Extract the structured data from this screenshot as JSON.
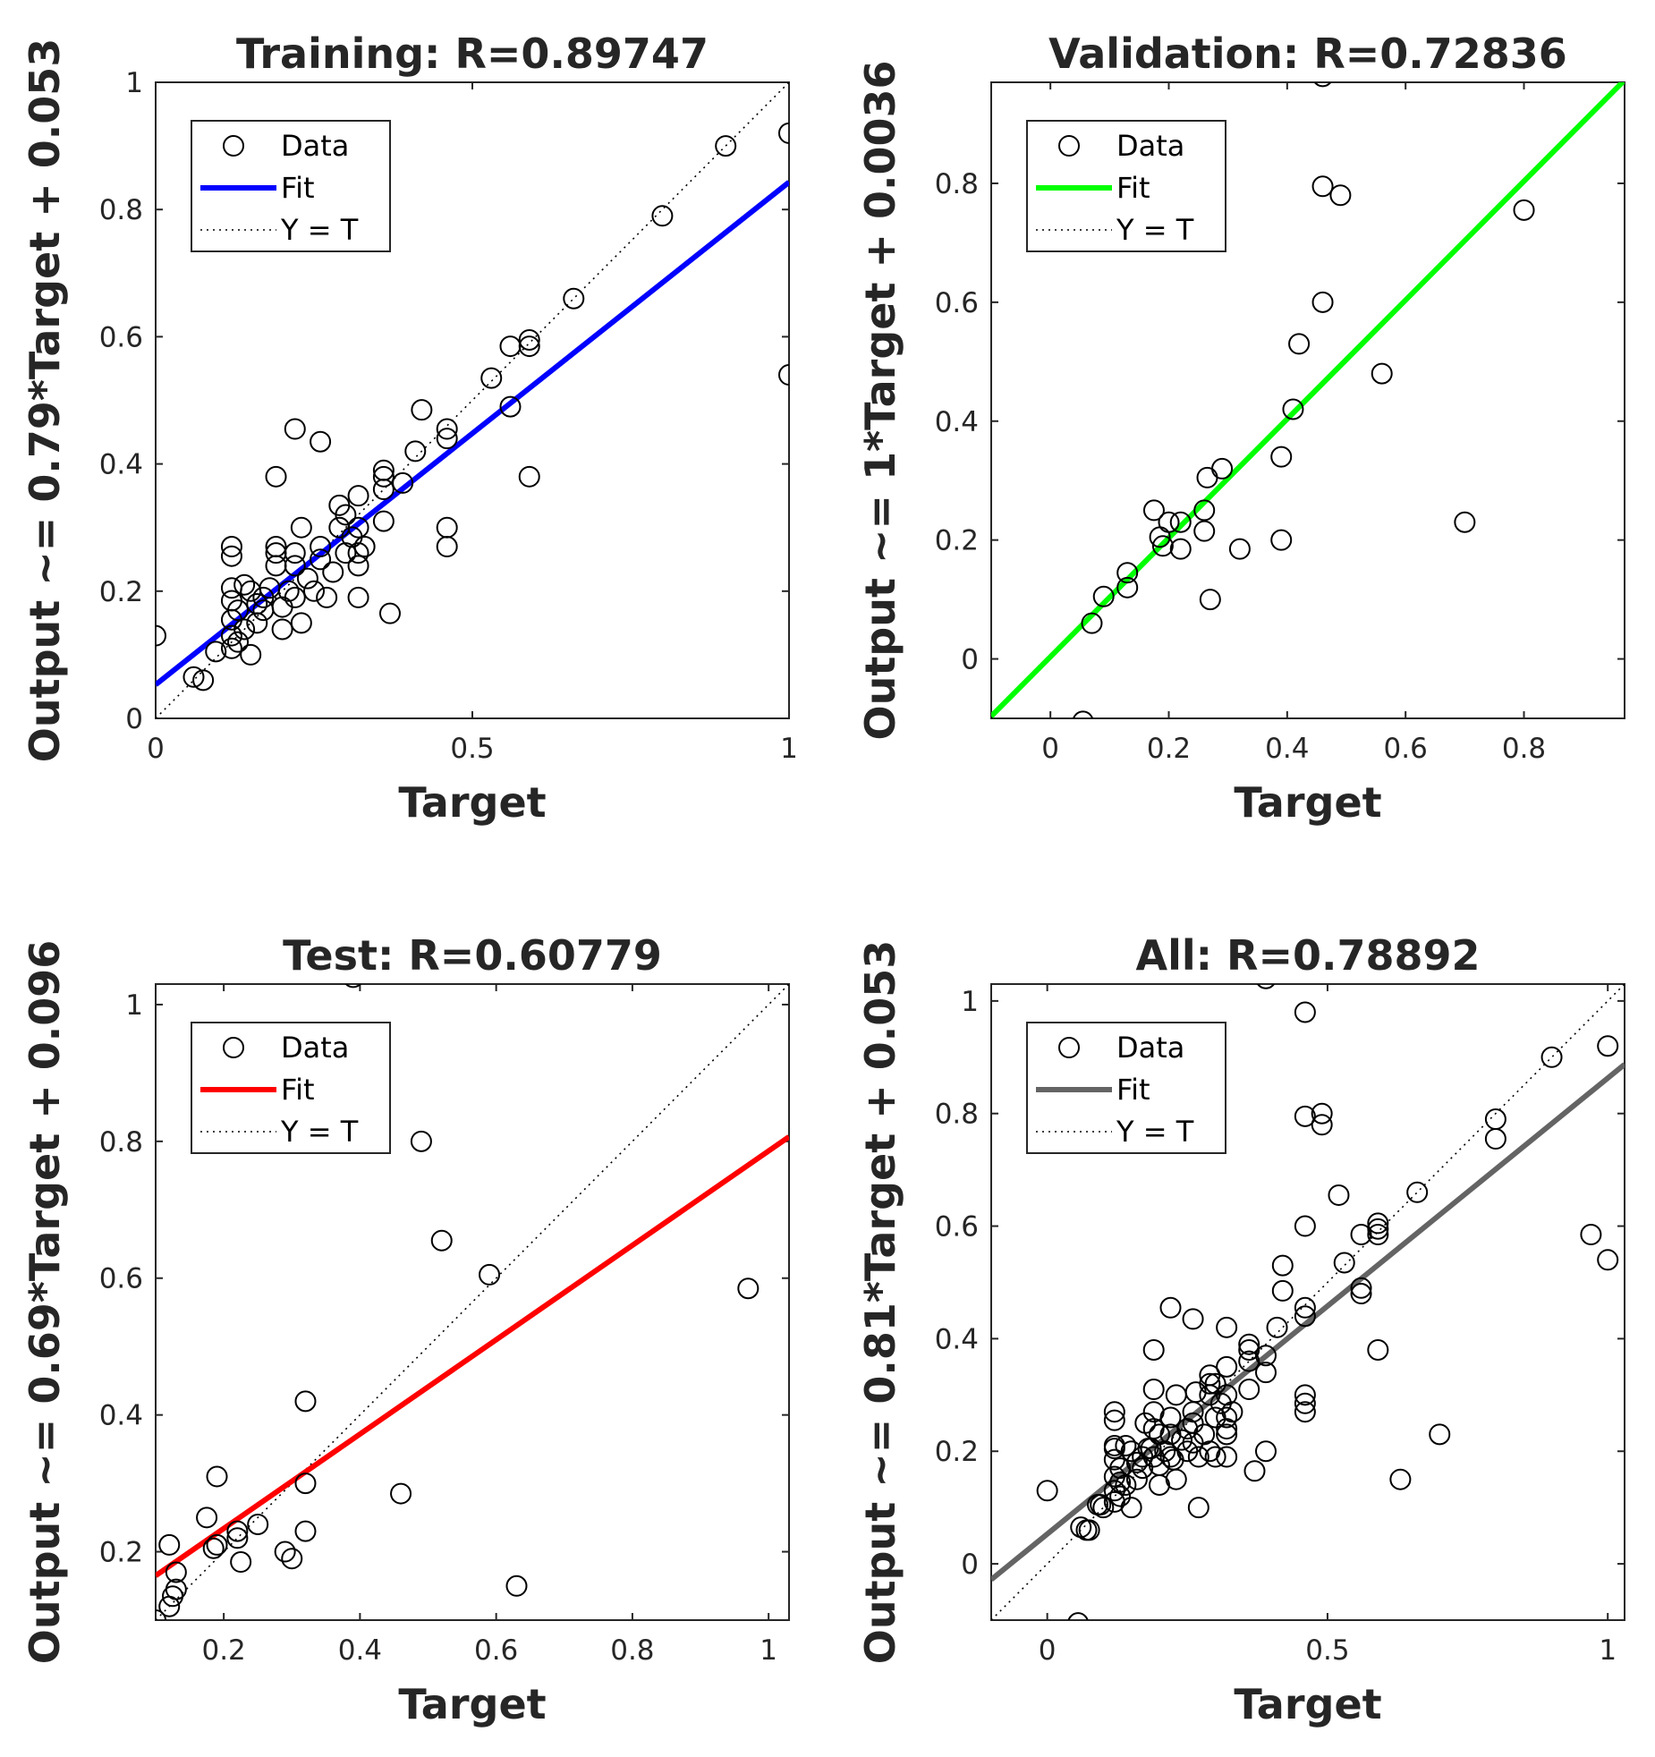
{
  "chart_data": [
    {
      "type": "scatter",
      "title": "Training: R=0.89747",
      "xlabel": "Target",
      "ylabel": "Output ~= 0.79*Target + 0.053",
      "xlim": [
        0,
        1
      ],
      "ylim": [
        0,
        1
      ],
      "xticks": [
        0,
        0.5,
        1
      ],
      "xtick_labels": [
        "0",
        "0.5",
        "1"
      ],
      "yticks": [
        0,
        0.2,
        0.4,
        0.6,
        0.8,
        1
      ],
      "ytick_labels": [
        "0",
        "0.2",
        "0.4",
        "0.6",
        "0.8",
        "1"
      ],
      "fit": {
        "slope": 0.79,
        "intercept": 0.053,
        "color": "#0000ff"
      },
      "legend": {
        "data": "Data",
        "fit": "Fit",
        "identity": "Y = T",
        "position": "top-left"
      },
      "points": [
        [
          0,
          0.13
        ],
        [
          0.06,
          0.065
        ],
        [
          0.075,
          0.06
        ],
        [
          0.095,
          0.105
        ],
        [
          0.12,
          0.11
        ],
        [
          0.12,
          0.13
        ],
        [
          0.12,
          0.155
        ],
        [
          0.12,
          0.185
        ],
        [
          0.12,
          0.205
        ],
        [
          0.12,
          0.255
        ],
        [
          0.12,
          0.27
        ],
        [
          0.13,
          0.12
        ],
        [
          0.13,
          0.17
        ],
        [
          0.14,
          0.14
        ],
        [
          0.14,
          0.21
        ],
        [
          0.15,
          0.1
        ],
        [
          0.15,
          0.2
        ],
        [
          0.16,
          0.15
        ],
        [
          0.16,
          0.18
        ],
        [
          0.17,
          0.17
        ],
        [
          0.17,
          0.19
        ],
        [
          0.18,
          0.205
        ],
        [
          0.19,
          0.24
        ],
        [
          0.19,
          0.26
        ],
        [
          0.19,
          0.27
        ],
        [
          0.19,
          0.38
        ],
        [
          0.2,
          0.14
        ],
        [
          0.2,
          0.175
        ],
        [
          0.21,
          0.2
        ],
        [
          0.22,
          0.19
        ],
        [
          0.22,
          0.24
        ],
        [
          0.22,
          0.26
        ],
        [
          0.22,
          0.455
        ],
        [
          0.23,
          0.15
        ],
        [
          0.23,
          0.3
        ],
        [
          0.24,
          0.22
        ],
        [
          0.25,
          0.2
        ],
        [
          0.26,
          0.25
        ],
        [
          0.26,
          0.27
        ],
        [
          0.26,
          0.435
        ],
        [
          0.27,
          0.19
        ],
        [
          0.28,
          0.23
        ],
        [
          0.29,
          0.3
        ],
        [
          0.29,
          0.335
        ],
        [
          0.3,
          0.26
        ],
        [
          0.3,
          0.32
        ],
        [
          0.31,
          0.285
        ],
        [
          0.32,
          0.19
        ],
        [
          0.32,
          0.24
        ],
        [
          0.32,
          0.26
        ],
        [
          0.32,
          0.3
        ],
        [
          0.32,
          0.35
        ],
        [
          0.33,
          0.27
        ],
        [
          0.36,
          0.31
        ],
        [
          0.36,
          0.36
        ],
        [
          0.36,
          0.38
        ],
        [
          0.36,
          0.39
        ],
        [
          0.37,
          0.165
        ],
        [
          0.39,
          0.37
        ],
        [
          0.41,
          0.42
        ],
        [
          0.42,
          0.485
        ],
        [
          0.46,
          0.27
        ],
        [
          0.46,
          0.3
        ],
        [
          0.46,
          0.44
        ],
        [
          0.46,
          0.455
        ],
        [
          0.53,
          0.535
        ],
        [
          0.56,
          0.49
        ],
        [
          0.56,
          0.585
        ],
        [
          0.59,
          0.38
        ],
        [
          0.59,
          0.585
        ],
        [
          0.59,
          0.595
        ],
        [
          0.66,
          0.66
        ],
        [
          0.8,
          0.79
        ],
        [
          0.9,
          0.9
        ],
        [
          1.0,
          0.54
        ],
        [
          1.0,
          0.92
        ]
      ]
    },
    {
      "type": "scatter",
      "title": "Validation: R=0.72836",
      "xlabel": "Target",
      "ylabel": "Output ~= 1*Target + 0.0036",
      "xlim": [
        -0.1,
        0.97
      ],
      "ylim": [
        -0.1,
        0.97
      ],
      "xticks": [
        0,
        0.2,
        0.4,
        0.6,
        0.8
      ],
      "xtick_labels": [
        "0",
        "0.2",
        "0.4",
        "0.6",
        "0.8"
      ],
      "yticks": [
        0,
        0.2,
        0.4,
        0.6,
        0.8
      ],
      "ytick_labels": [
        "0",
        "0.2",
        "0.4",
        "0.6",
        "0.8"
      ],
      "fit": {
        "slope": 1,
        "intercept": 0.0036,
        "color": "#00ff00"
      },
      "legend": {
        "data": "Data",
        "fit": "Fit",
        "identity": "Y = T",
        "position": "top-left"
      },
      "points": [
        [
          0.055,
          -0.105
        ],
        [
          0.07,
          0.06
        ],
        [
          0.09,
          0.105
        ],
        [
          0.13,
          0.12
        ],
        [
          0.13,
          0.145
        ],
        [
          0.175,
          0.25
        ],
        [
          0.185,
          0.205
        ],
        [
          0.19,
          0.19
        ],
        [
          0.2,
          0.23
        ],
        [
          0.22,
          0.23
        ],
        [
          0.22,
          0.185
        ],
        [
          0.26,
          0.215
        ],
        [
          0.26,
          0.25
        ],
        [
          0.265,
          0.305
        ],
        [
          0.27,
          0.1
        ],
        [
          0.29,
          0.32
        ],
        [
          0.32,
          0.185
        ],
        [
          0.39,
          0.2
        ],
        [
          0.39,
          0.34
        ],
        [
          0.41,
          0.42
        ],
        [
          0.42,
          0.53
        ],
        [
          0.46,
          0.6
        ],
        [
          0.46,
          0.795
        ],
        [
          0.46,
          0.98
        ],
        [
          0.49,
          0.78
        ],
        [
          0.56,
          0.48
        ],
        [
          0.7,
          0.23
        ],
        [
          0.8,
          0.755
        ]
      ]
    },
    {
      "type": "scatter",
      "title": "Test: R=0.60779",
      "xlabel": "Target",
      "ylabel": "Output ~= 0.69*Target + 0.096",
      "xlim": [
        0.1,
        1.03
      ],
      "ylim": [
        0.1,
        1.03
      ],
      "xticks": [
        0.2,
        0.4,
        0.6,
        0.8,
        1
      ],
      "xtick_labels": [
        "0.2",
        "0.4",
        "0.6",
        "0.8",
        "1"
      ],
      "yticks": [
        0.2,
        0.4,
        0.6,
        0.8,
        1
      ],
      "ytick_labels": [
        "0.2",
        "0.4",
        "0.6",
        "0.8",
        "1"
      ],
      "fit": {
        "slope": 0.69,
        "intercept": 0.096,
        "color": "#ff0000"
      },
      "legend": {
        "data": "Data",
        "fit": "Fit",
        "identity": "Y = T",
        "position": "top-left"
      },
      "points": [
        [
          0.1,
          0.1
        ],
        [
          0.12,
          0.12
        ],
        [
          0.125,
          0.135
        ],
        [
          0.13,
          0.145
        ],
        [
          0.12,
          0.21
        ],
        [
          0.13,
          0.17
        ],
        [
          0.175,
          0.25
        ],
        [
          0.185,
          0.205
        ],
        [
          0.19,
          0.31
        ],
        [
          0.19,
          0.21
        ],
        [
          0.22,
          0.23
        ],
        [
          0.22,
          0.22
        ],
        [
          0.225,
          0.185
        ],
        [
          0.25,
          0.24
        ],
        [
          0.29,
          0.2
        ],
        [
          0.3,
          0.19
        ],
        [
          0.32,
          0.42
        ],
        [
          0.32,
          0.3
        ],
        [
          0.32,
          0.23
        ],
        [
          0.39,
          1.04
        ],
        [
          0.46,
          0.285
        ],
        [
          0.49,
          0.8
        ],
        [
          0.52,
          0.655
        ],
        [
          0.59,
          0.605
        ],
        [
          0.63,
          0.15
        ],
        [
          0.97,
          0.585
        ]
      ]
    },
    {
      "type": "scatter",
      "title": "All: R=0.78892",
      "xlabel": "Target",
      "ylabel": "Output ~= 0.81*Target + 0.053",
      "xlim": [
        -0.1,
        1.03
      ],
      "ylim": [
        -0.1,
        1.03
      ],
      "xticks": [
        0,
        0.5,
        1
      ],
      "xtick_labels": [
        "0",
        "0.5",
        "1"
      ],
      "yticks": [
        0,
        0.2,
        0.4,
        0.6,
        0.8,
        1
      ],
      "ytick_labels": [
        "0",
        "0.2",
        "0.4",
        "0.6",
        "0.8",
        "1"
      ],
      "fit": {
        "slope": 0.81,
        "intercept": 0.053,
        "color": "#646464"
      },
      "legend": {
        "data": "Data",
        "fit": "Fit",
        "identity": "Y = T",
        "position": "top-left"
      },
      "points": [
        [
          0,
          0.13
        ],
        [
          0.055,
          -0.105
        ],
        [
          0.06,
          0.065
        ],
        [
          0.07,
          0.06
        ],
        [
          0.075,
          0.06
        ],
        [
          0.09,
          0.105
        ],
        [
          0.095,
          0.105
        ],
        [
          0.1,
          0.1
        ],
        [
          0.12,
          0.11
        ],
        [
          0.12,
          0.13
        ],
        [
          0.12,
          0.155
        ],
        [
          0.12,
          0.185
        ],
        [
          0.12,
          0.205
        ],
        [
          0.12,
          0.21
        ],
        [
          0.12,
          0.255
        ],
        [
          0.12,
          0.27
        ],
        [
          0.13,
          0.12
        ],
        [
          0.13,
          0.145
        ],
        [
          0.13,
          0.17
        ],
        [
          0.14,
          0.14
        ],
        [
          0.14,
          0.21
        ],
        [
          0.15,
          0.1
        ],
        [
          0.15,
          0.2
        ],
        [
          0.16,
          0.15
        ],
        [
          0.16,
          0.18
        ],
        [
          0.17,
          0.17
        ],
        [
          0.17,
          0.19
        ],
        [
          0.175,
          0.25
        ],
        [
          0.18,
          0.205
        ],
        [
          0.185,
          0.205
        ],
        [
          0.19,
          0.19
        ],
        [
          0.19,
          0.24
        ],
        [
          0.19,
          0.27
        ],
        [
          0.19,
          0.31
        ],
        [
          0.19,
          0.38
        ],
        [
          0.2,
          0.14
        ],
        [
          0.2,
          0.175
        ],
        [
          0.2,
          0.23
        ],
        [
          0.21,
          0.2
        ],
        [
          0.22,
          0.19
        ],
        [
          0.22,
          0.23
        ],
        [
          0.22,
          0.26
        ],
        [
          0.22,
          0.455
        ],
        [
          0.225,
          0.185
        ],
        [
          0.23,
          0.15
        ],
        [
          0.23,
          0.3
        ],
        [
          0.24,
          0.22
        ],
        [
          0.25,
          0.2
        ],
        [
          0.25,
          0.24
        ],
        [
          0.26,
          0.215
        ],
        [
          0.26,
          0.25
        ],
        [
          0.26,
          0.27
        ],
        [
          0.26,
          0.435
        ],
        [
          0.265,
          0.305
        ],
        [
          0.27,
          0.1
        ],
        [
          0.27,
          0.19
        ],
        [
          0.28,
          0.23
        ],
        [
          0.29,
          0.2
        ],
        [
          0.29,
          0.3
        ],
        [
          0.29,
          0.32
        ],
        [
          0.29,
          0.335
        ],
        [
          0.3,
          0.19
        ],
        [
          0.3,
          0.26
        ],
        [
          0.3,
          0.32
        ],
        [
          0.31,
          0.285
        ],
        [
          0.32,
          0.19
        ],
        [
          0.32,
          0.23
        ],
        [
          0.32,
          0.24
        ],
        [
          0.32,
          0.26
        ],
        [
          0.32,
          0.3
        ],
        [
          0.32,
          0.35
        ],
        [
          0.32,
          0.42
        ],
        [
          0.33,
          0.27
        ],
        [
          0.36,
          0.31
        ],
        [
          0.36,
          0.36
        ],
        [
          0.36,
          0.38
        ],
        [
          0.36,
          0.39
        ],
        [
          0.37,
          0.165
        ],
        [
          0.39,
          0.2
        ],
        [
          0.39,
          0.34
        ],
        [
          0.39,
          0.37
        ],
        [
          0.39,
          1.04
        ],
        [
          0.41,
          0.42
        ],
        [
          0.42,
          0.485
        ],
        [
          0.42,
          0.53
        ],
        [
          0.46,
          0.27
        ],
        [
          0.46,
          0.285
        ],
        [
          0.46,
          0.3
        ],
        [
          0.46,
          0.44
        ],
        [
          0.46,
          0.455
        ],
        [
          0.46,
          0.6
        ],
        [
          0.46,
          0.795
        ],
        [
          0.46,
          0.98
        ],
        [
          0.49,
          0.78
        ],
        [
          0.49,
          0.8
        ],
        [
          0.52,
          0.655
        ],
        [
          0.53,
          0.535
        ],
        [
          0.56,
          0.48
        ],
        [
          0.56,
          0.49
        ],
        [
          0.56,
          0.585
        ],
        [
          0.59,
          0.38
        ],
        [
          0.59,
          0.585
        ],
        [
          0.59,
          0.595
        ],
        [
          0.59,
          0.605
        ],
        [
          0.63,
          0.15
        ],
        [
          0.66,
          0.66
        ],
        [
          0.7,
          0.23
        ],
        [
          0.8,
          0.755
        ],
        [
          0.8,
          0.79
        ],
        [
          0.9,
          0.9
        ],
        [
          0.97,
          0.585
        ],
        [
          1.0,
          0.54
        ],
        [
          1.0,
          0.92
        ]
      ]
    }
  ]
}
